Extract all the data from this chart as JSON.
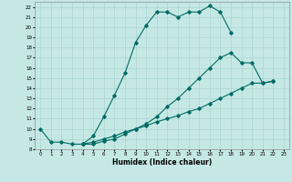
{
  "xlabel": "Humidex (Indice chaleur)",
  "background_color": "#c5e8e5",
  "grid_color": "#aad4d0",
  "line_color": "#006b63",
  "xlim": [
    -0.5,
    23.5
  ],
  "ylim": [
    8,
    22.5
  ],
  "curve1_x": [
    0,
    1,
    2,
    3,
    4,
    5,
    6,
    7,
    8,
    9,
    10,
    11,
    12,
    13,
    14,
    15,
    16,
    17,
    18
  ],
  "curve1_y": [
    10.0,
    8.7,
    8.7,
    8.5,
    8.5,
    9.3,
    11.2,
    13.3,
    15.5,
    18.5,
    20.2,
    21.5,
    21.5,
    21.0,
    21.5,
    21.5,
    22.1,
    21.5,
    19.5
  ],
  "curve2_x": [
    4,
    5,
    6,
    7,
    8,
    9,
    10,
    11,
    12,
    13,
    14,
    15,
    16,
    17,
    18,
    19,
    20,
    21,
    22
  ],
  "curve2_y": [
    8.5,
    8.5,
    8.8,
    9.0,
    9.5,
    10.0,
    10.5,
    11.2,
    12.2,
    13.0,
    14.0,
    15.0,
    16.0,
    17.0,
    17.5,
    16.5,
    16.5,
    14.5,
    14.7
  ],
  "curve3_x": [
    4,
    5,
    6,
    7,
    8,
    9,
    10,
    11,
    12,
    13,
    14,
    15,
    16,
    17,
    18,
    19,
    20,
    21,
    22
  ],
  "curve3_y": [
    8.5,
    8.7,
    9.0,
    9.3,
    9.7,
    10.0,
    10.3,
    10.7,
    11.0,
    11.3,
    11.7,
    12.0,
    12.5,
    13.0,
    13.5,
    14.0,
    14.5,
    14.5,
    14.7
  ]
}
